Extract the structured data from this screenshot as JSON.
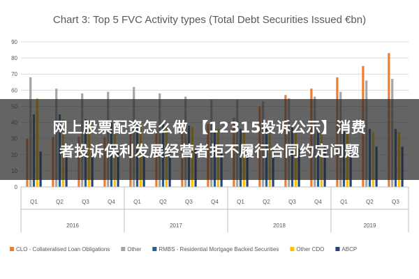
{
  "chart_data": {
    "type": "bar",
    "title": "Chart 3: Top 5 FVC Activity types (Total Debt Securities Issued €bn)",
    "xlabel": "",
    "ylabel": "",
    "ylim": [
      0,
      90
    ],
    "yticks": [
      0,
      10,
      20,
      30,
      40,
      50,
      60,
      70,
      80,
      90
    ],
    "grid": true,
    "legend_position": "bottom",
    "categories": [
      "Q1",
      "Q2",
      "Q3",
      "Q4",
      "Q1",
      "Q2",
      "Q3",
      "Q4",
      "Q1",
      "Q2",
      "Q3",
      "Q4",
      "Q1",
      "Q2",
      "Q3"
    ],
    "years": [
      {
        "label": "2016",
        "span": 4
      },
      {
        "label": "2017",
        "span": 4
      },
      {
        "label": "2018",
        "span": 4
      },
      {
        "label": "2019",
        "span": 3
      }
    ],
    "series": [
      {
        "name": "CLO - Collateralised Loan Obligations",
        "color": "#ED7D31",
        "values": [
          30,
          31,
          31,
          31,
          34,
          35,
          37,
          39,
          43,
          50,
          57,
          61,
          68,
          75,
          83
        ]
      },
      {
        "name": "Other",
        "color": "#A5A5A5",
        "values": [
          68,
          61,
          58,
          59,
          62,
          58,
          56,
          54,
          54,
          53,
          55,
          56,
          59,
          66,
          67
        ]
      },
      {
        "name": "RMBS - Residential Mortgage Backed Securities",
        "color": "#255E91",
        "values": [
          45,
          45,
          42,
          40,
          40,
          39,
          38,
          36,
          36,
          36,
          37,
          36,
          35,
          36,
          36
        ]
      },
      {
        "name": "Other CDO",
        "color": "#FFC000",
        "values": [
          55,
          42,
          40,
          40,
          38,
          38,
          37,
          36,
          35,
          35,
          35,
          34,
          34,
          34,
          34
        ]
      },
      {
        "name": "ABCP",
        "color": "#264478",
        "values": [
          22,
          21,
          21,
          22,
          22,
          23,
          23,
          23,
          24,
          24,
          24,
          25,
          25,
          25,
          25
        ]
      }
    ]
  },
  "overlay": {
    "line1": "网上股票配资怎么做 【12315投诉公示】消费",
    "line2": "者投诉保利发展经营者拒不履行合同约定问题"
  }
}
